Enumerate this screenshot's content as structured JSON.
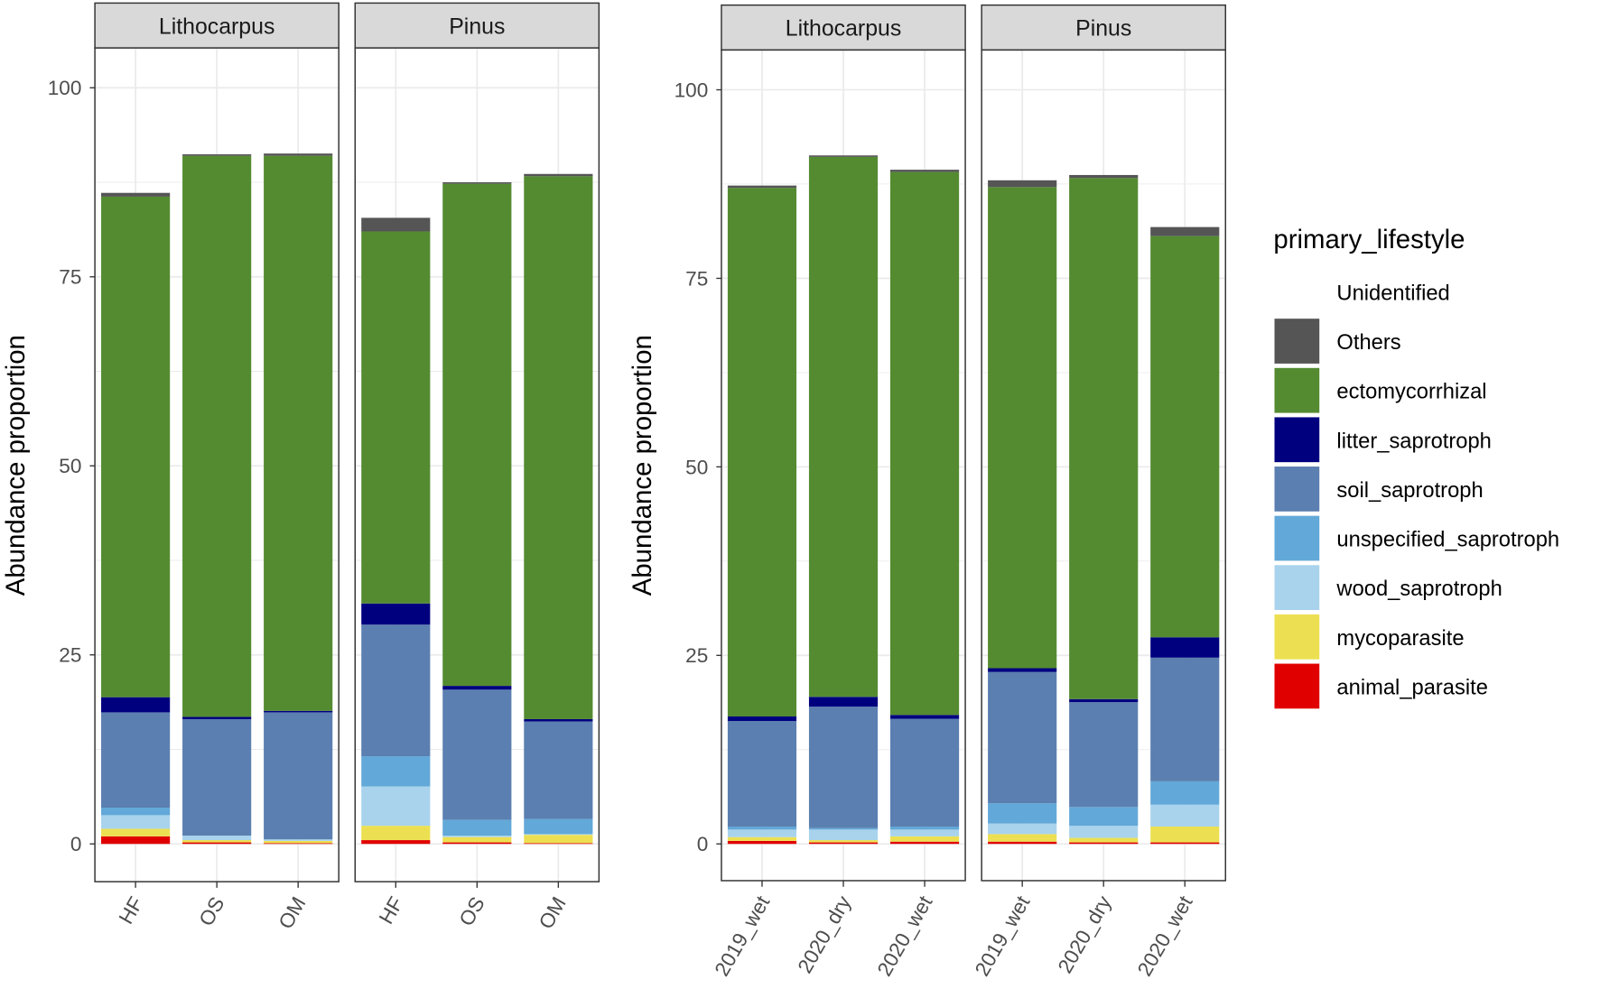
{
  "chart_data": [
    {
      "type": "bar",
      "stacked": true,
      "ylabel": "Abundance proportion",
      "ylim": [
        0,
        100
      ],
      "yticks": [
        "0",
        "25",
        "50",
        "75",
        "100"
      ],
      "facets": [
        {
          "title": "Lithocarpus",
          "categories": [
            "HF",
            "OS",
            "OM"
          ],
          "stacks": [
            [
              1.0,
              1.0,
              1.8,
              1.0,
              12.6,
              2.0,
              66.2,
              0.5
            ],
            [
              0.2,
              0.3,
              0.6,
              0.0,
              15.4,
              0.3,
              74.2,
              0.2
            ],
            [
              0.1,
              0.3,
              0.2,
              0.0,
              16.8,
              0.2,
              73.4,
              0.3
            ]
          ]
        },
        {
          "title": "Pinus",
          "categories": [
            "HF",
            "OS",
            "OM"
          ],
          "stacks": [
            [
              0.5,
              1.9,
              5.2,
              4.0,
              17.4,
              2.8,
              49.2,
              1.8
            ],
            [
              0.2,
              0.7,
              0.2,
              2.1,
              17.2,
              0.5,
              66.4,
              0.2
            ],
            [
              0.1,
              1.1,
              0.1,
              2.0,
              12.9,
              0.3,
              71.8,
              0.3
            ]
          ]
        }
      ]
    },
    {
      "type": "bar",
      "stacked": true,
      "ylabel": "Abundance proportion",
      "ylim": [
        0,
        100
      ],
      "yticks": [
        "0",
        "25",
        "50",
        "75",
        "100"
      ],
      "facets": [
        {
          "title": "Lithocarpus",
          "categories": [
            "2019_wet",
            "2020_dry",
            "2020_wet"
          ],
          "stacks": [
            [
              0.4,
              0.5,
              1.0,
              0.4,
              14.0,
              0.6,
              70.1,
              0.3
            ],
            [
              0.2,
              0.3,
              1.4,
              0.2,
              16.1,
              1.3,
              71.6,
              0.2
            ],
            [
              0.3,
              0.7,
              0.9,
              0.4,
              14.3,
              0.5,
              72.0,
              0.3
            ]
          ]
        },
        {
          "title": "Pinus",
          "categories": [
            "2019_wet",
            "2020_dry",
            "2020_wet"
          ],
          "stacks": [
            [
              0.3,
              1.0,
              1.4,
              2.7,
              17.4,
              0.5,
              63.8,
              0.9
            ],
            [
              0.2,
              0.6,
              1.6,
              2.5,
              13.9,
              0.4,
              69.1,
              0.4
            ],
            [
              0.2,
              2.1,
              2.9,
              3.1,
              16.4,
              2.7,
              53.2,
              1.2
            ]
          ]
        }
      ]
    }
  ],
  "legend": {
    "title": "primary_lifestyle",
    "entries": [
      {
        "name": "Unidentified",
        "color": "#ffffff"
      },
      {
        "name": "Others",
        "color": "#555555"
      },
      {
        "name": "ectomycorrhizal",
        "color": "#548b31"
      },
      {
        "name": "litter_saprotroph",
        "color": "#00007f"
      },
      {
        "name": "soil_saprotroph",
        "color": "#5b7fb0"
      },
      {
        "name": "unspecified_saprotroph",
        "color": "#62a8d8"
      },
      {
        "name": "wood_saprotroph",
        "color": "#a9d3ec"
      },
      {
        "name": "mycoparasite",
        "color": "#ece052"
      },
      {
        "name": "animal_parasite",
        "color": "#e00000"
      }
    ],
    "stack_order": [
      "animal_parasite",
      "mycoparasite",
      "wood_saprotroph",
      "unspecified_saprotroph",
      "soil_saprotroph",
      "litter_saprotroph",
      "ectomycorrhizal",
      "Others"
    ]
  }
}
